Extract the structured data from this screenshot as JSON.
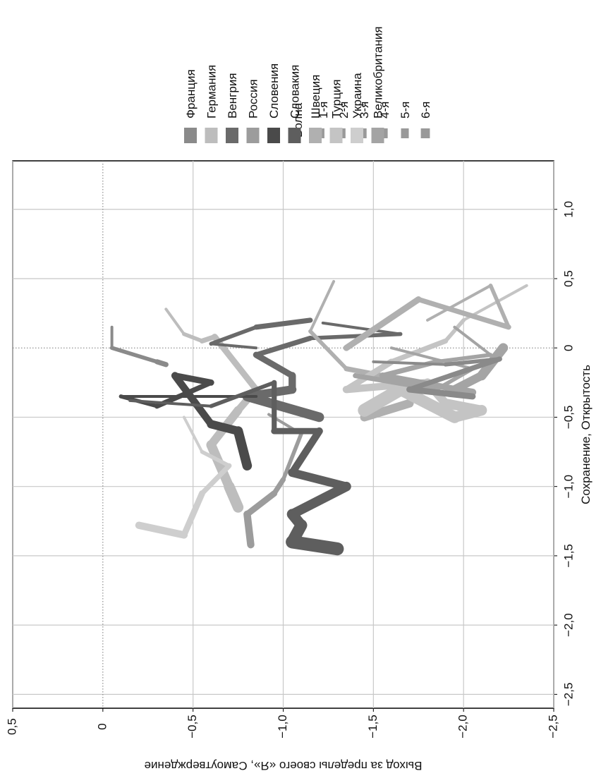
{
  "chart_data": {
    "type": "line",
    "title": "",
    "xlabel": "Сохранение, Открытость",
    "ylabel": "Выход за пределы своего «Я», Самоутверждение",
    "xlim": [
      -2.6,
      1.35
    ],
    "ylim": [
      -2.5,
      0.5
    ],
    "x_ticks": [
      -2.5,
      -2.0,
      -1.5,
      -1.0,
      -0.5,
      0,
      0.5,
      1.0
    ],
    "x_tick_labels": [
      "−2,5",
      "−2,0",
      "−1,5",
      "−1,0",
      "−0,5",
      "0",
      "0,5",
      "1,0"
    ],
    "y_ticks": [
      0.5,
      0,
      -0.5,
      -1.0,
      -1.5,
      -2.0,
      -2.5
    ],
    "y_tick_labels": [
      "0,5",
      "0",
      "−0,5",
      "−1,0",
      "−1,5",
      "−2,0",
      "−2,5"
    ],
    "grid": true,
    "reference_lines": {
      "x": 0,
      "y": 0
    },
    "legend_waves": {
      "title": "Волна",
      "items": [
        "1-я",
        "2-я",
        "3-я",
        "4-я",
        "5-я",
        "6-я"
      ],
      "widths": [
        1,
        2,
        3,
        4,
        5,
        6
      ]
    },
    "legend_countries": {
      "items": [
        "Франция",
        "Германия",
        "Венгрия",
        "Россия",
        "Словения",
        "Словакия",
        "Швеция",
        "Турция",
        "Украина",
        "Великобритания"
      ],
      "colors": [
        "#8a8a8a",
        "#bdbdbd",
        "#6a6a6a",
        "#9c9c9c",
        "#4a4a4a",
        "#5e5e5e",
        "#b0b0b0",
        "#c4c4c4",
        "#cecece",
        "#a4a4a4"
      ]
    },
    "series": [
      {
        "country_index": 0,
        "points": [
          [
            0.15,
            -0.05
          ],
          [
            0,
            -0.05
          ],
          [
            -0.1,
            -0.3
          ],
          [
            -0.12,
            -0.35
          ]
        ]
      },
      {
        "country_index": 1,
        "points": [
          [
            0.28,
            -0.35
          ],
          [
            0.1,
            -0.45
          ],
          [
            0.05,
            -0.55
          ],
          [
            0.08,
            -0.62
          ],
          [
            -0.3,
            -0.85
          ],
          [
            -0.45,
            -0.75
          ],
          [
            -0.7,
            -0.6
          ],
          [
            -1.0,
            -0.7
          ],
          [
            -1.15,
            -0.75
          ]
        ]
      },
      {
        "country_index": 2,
        "points": [
          [
            0.18,
            -1.22
          ],
          [
            0.1,
            -1.65
          ],
          [
            0.07,
            -1.15
          ],
          [
            -0.05,
            -0.85
          ],
          [
            -0.2,
            -1.05
          ],
          [
            -0.3,
            -1.05
          ],
          [
            -0.35,
            -0.8
          ],
          [
            -0.5,
            -1.2
          ]
        ]
      },
      {
        "country_index": 3,
        "points": [
          [
            -0.48,
            -0.92
          ],
          [
            -0.62,
            -1.1
          ],
          [
            -0.95,
            -1.0
          ],
          [
            -1.05,
            -0.95
          ],
          [
            -1.2,
            -0.8
          ],
          [
            -1.42,
            -0.82
          ]
        ]
      },
      {
        "country_index": 4,
        "points": [
          [
            -0.35,
            -0.85
          ],
          [
            -0.35,
            -0.1
          ],
          [
            -0.42,
            -0.3
          ],
          [
            -0.25,
            -0.6
          ],
          [
            -0.2,
            -0.4
          ],
          [
            -0.55,
            -0.6
          ],
          [
            -0.6,
            -0.75
          ],
          [
            -0.85,
            -0.8
          ]
        ]
      },
      {
        "country_index": 5,
        "points": [
          [
            -0.38,
            -0.15
          ],
          [
            -0.42,
            -0.6
          ],
          [
            -0.25,
            -0.95
          ],
          [
            -0.6,
            -0.95
          ],
          [
            -0.6,
            -1.2
          ],
          [
            -0.9,
            -1.05
          ],
          [
            -1.0,
            -1.35
          ],
          [
            -1.2,
            -1.05
          ],
          [
            -1.28,
            -1.1
          ],
          [
            -1.4,
            -1.05
          ],
          [
            -1.45,
            -1.3
          ]
        ]
      },
      {
        "country_index": 6,
        "points": [
          [
            0.48,
            -1.28
          ],
          [
            0.12,
            -1.15
          ],
          [
            -0.15,
            -1.35
          ],
          [
            -0.2,
            -1.55
          ],
          [
            -0.28,
            -1.75
          ],
          [
            -0.4,
            -1.7
          ],
          [
            -0.5,
            -1.45
          ]
        ]
      },
      {
        "country_index": 7,
        "points": [
          [
            0.45,
            -2.35
          ],
          [
            0.2,
            -2.0
          ],
          [
            0.05,
            -1.9
          ],
          [
            -0.1,
            -1.6
          ],
          [
            -0.3,
            -1.35
          ],
          [
            -0.25,
            -1.8
          ],
          [
            -0.4,
            -1.9
          ],
          [
            -0.45,
            -2.1
          ],
          [
            -0.5,
            -1.95
          ],
          [
            -0.3,
            -1.65
          ],
          [
            -0.45,
            -1.45
          ]
        ]
      },
      {
        "country_index": 8,
        "points": [
          [
            -0.5,
            -0.45
          ],
          [
            -0.75,
            -0.55
          ],
          [
            -0.85,
            -0.7
          ],
          [
            -1.05,
            -0.55
          ],
          [
            -1.35,
            -0.45
          ],
          [
            -1.28,
            -0.2
          ]
        ]
      },
      {
        "country_index": 9,
        "points": [
          [
            0.15,
            -1.95
          ],
          [
            -0.05,
            -2.15
          ],
          [
            -0.1,
            -1.85
          ],
          [
            -0.2,
            -1.55
          ],
          [
            -0.32,
            -2.05
          ],
          [
            -0.3,
            -1.95
          ],
          [
            -0.2,
            -2.1
          ],
          [
            0.0,
            -2.22
          ]
        ]
      },
      {
        "country_index": 9,
        "points": [
          [
            0.0,
            -1.6
          ],
          [
            -0.15,
            -2.05
          ],
          [
            -0.3,
            -1.85
          ],
          [
            -0.2,
            -1.4
          ]
        ]
      },
      {
        "country_index": 6,
        "points": [
          [
            0.2,
            -1.8
          ],
          [
            0.45,
            -2.15
          ],
          [
            0.15,
            -2.25
          ],
          [
            0.35,
            -1.75
          ],
          [
            0.0,
            -1.35
          ]
        ]
      },
      {
        "country_index": 2,
        "points": [
          [
            0.0,
            -0.85
          ],
          [
            0.03,
            -0.6
          ],
          [
            0.15,
            -0.85
          ],
          [
            0.2,
            -1.15
          ]
        ]
      },
      {
        "country_index": 0,
        "points": [
          [
            -0.1,
            -1.5
          ],
          [
            -0.12,
            -1.9
          ],
          [
            -0.08,
            -2.2
          ],
          [
            -0.3,
            -1.7
          ],
          [
            -0.35,
            -2.05
          ]
        ]
      }
    ]
  }
}
